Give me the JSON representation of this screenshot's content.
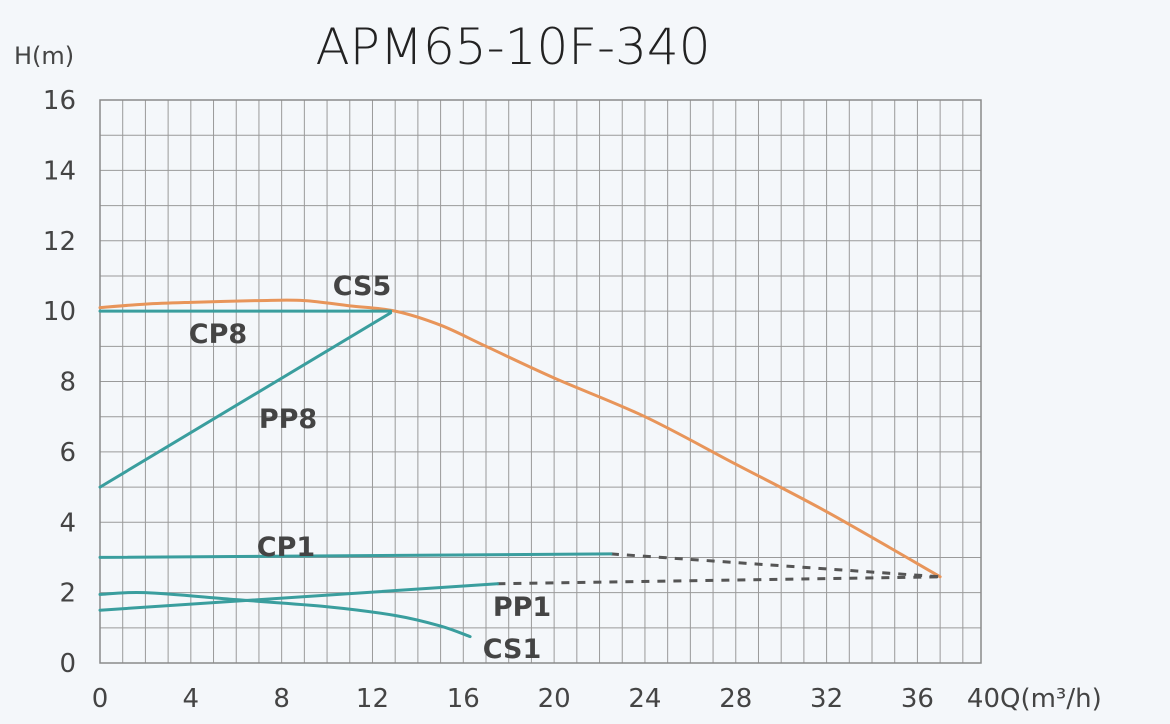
{
  "chart_data": {
    "type": "line",
    "title": "APM65-10F-340",
    "ylabel": "H(m)",
    "xlabel": "Q(m³/h)",
    "xlim": [
      0,
      38.8
    ],
    "ylim": [
      0,
      16
    ],
    "xticks": [
      0,
      4,
      8,
      12,
      16,
      20,
      24,
      28,
      32,
      36,
      40
    ],
    "yticks": [
      0,
      2,
      4,
      6,
      8,
      10,
      12,
      14,
      16
    ],
    "grid": true,
    "grid_step": {
      "x": 1,
      "y": 1
    },
    "colors": {
      "teal": "#3a9e9e",
      "orange": "#e8955a",
      "dashed": "#555555",
      "grid": "#9a9a9a",
      "text": "#444444"
    },
    "series": [
      {
        "name": "CS5",
        "color": "#e8955a",
        "style": "solid",
        "points": [
          [
            0,
            10.1
          ],
          [
            2,
            10.2
          ],
          [
            4,
            10.25
          ],
          [
            7,
            10.3
          ],
          [
            9,
            10.3
          ],
          [
            11,
            10.15
          ],
          [
            13,
            10.0
          ],
          [
            15,
            9.6
          ],
          [
            17,
            9.0
          ],
          [
            20,
            8.1
          ],
          [
            24,
            7.0
          ],
          [
            28,
            5.65
          ],
          [
            32,
            4.3
          ],
          [
            37,
            2.45
          ]
        ]
      },
      {
        "name": "CP8",
        "color": "#3a9e9e",
        "style": "solid",
        "points": [
          [
            0,
            10.0
          ],
          [
            12.8,
            10.0
          ]
        ]
      },
      {
        "name": "PP8",
        "color": "#3a9e9e",
        "style": "solid",
        "points": [
          [
            0,
            5.0
          ],
          [
            12.8,
            9.95
          ]
        ]
      },
      {
        "name": "CP1",
        "color": "#3a9e9e",
        "style": "solid",
        "points": [
          [
            0,
            3.0
          ],
          [
            22.5,
            3.1
          ]
        ],
        "extension": [
          [
            22.5,
            3.1
          ],
          [
            37,
            2.45
          ]
        ]
      },
      {
        "name": "PP1",
        "color": "#3a9e9e",
        "style": "solid",
        "points": [
          [
            0,
            1.5
          ],
          [
            17.5,
            2.25
          ]
        ],
        "extension": [
          [
            17.5,
            2.25
          ],
          [
            37,
            2.45
          ]
        ]
      },
      {
        "name": "CS1",
        "color": "#3a9e9e",
        "style": "solid",
        "points": [
          [
            0,
            1.95
          ],
          [
            2,
            2.0
          ],
          [
            6,
            1.8
          ],
          [
            10,
            1.6
          ],
          [
            13,
            1.35
          ],
          [
            15,
            1.05
          ],
          [
            16.3,
            0.75
          ]
        ]
      }
    ]
  }
}
